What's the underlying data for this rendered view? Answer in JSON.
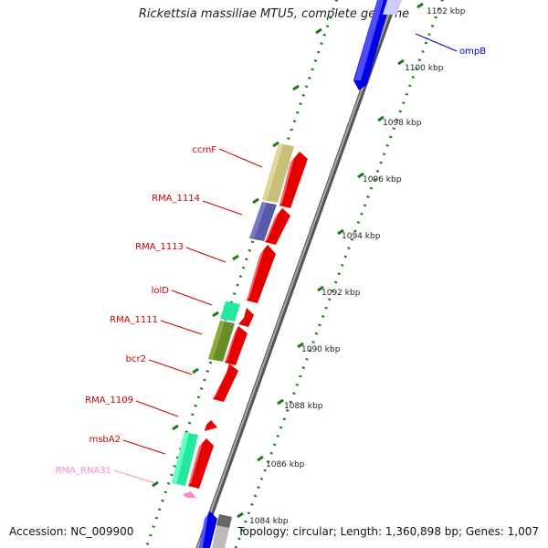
{
  "title": "Rickettsia massiliae MTU5, complete genome",
  "footer": {
    "accession": "Accession: NC_009900",
    "summary": "Topology: circular; Length: 1,360,898 bp; Genes: 1,007"
  },
  "ticks": [
    "1102 kbp",
    "1100 kbp",
    "1098 kbp",
    "1096 kbp",
    "1094 kbp",
    "1092 kbp",
    "1090 kbp",
    "1088 kbp",
    "1086 kbp",
    "1084 kbp"
  ],
  "gene_labels": [
    "ompB",
    "ccmF",
    "RMA_1114",
    "RMA_1113",
    "lolD",
    "RMA_1111",
    "bcr2",
    "RMA_1109",
    "msbA2",
    "RMA_RNA31"
  ],
  "colors": {
    "forward_cds": "#e60000",
    "reverse_cds": "#0000e6",
    "ompB_label": "#0000cc",
    "gene_label": "#cc0000",
    "rna_label": "#ff88cc",
    "backbone": "#888888",
    "tick_marks": "#1a7a1a",
    "ccmF": "#c8bf78",
    "RMA_1114": "#5c5aa8",
    "lolD": "#22e8a0",
    "RMA_1111": "#6b8a28",
    "msbA2": "#22e8a0"
  }
}
